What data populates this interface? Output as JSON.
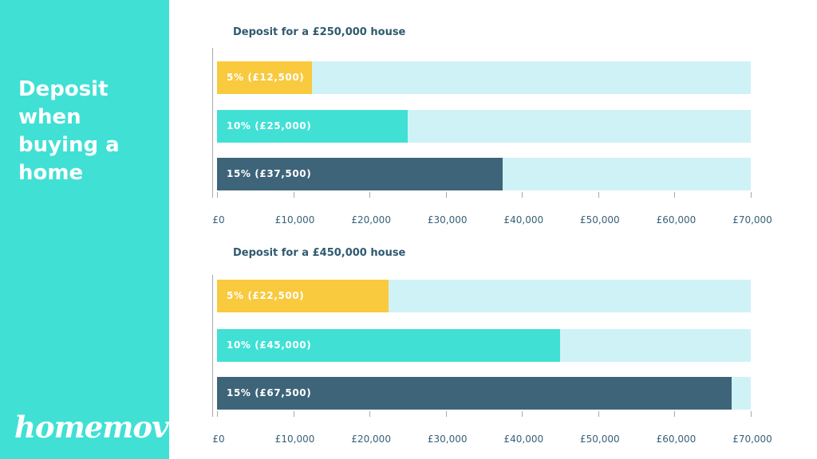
{
  "sidebar": {
    "title_lines": [
      "Deposit",
      "when",
      "buying a",
      "home"
    ],
    "logo": "homemove",
    "background_color": "#40e0d5"
  },
  "chart_data": [
    {
      "type": "bar",
      "orientation": "horizontal",
      "stacked_background": true,
      "title": "Deposit for a £250,000 house",
      "categories": [
        "5% (£12,500)",
        "10% (£25,000)",
        "15% (£37,500)"
      ],
      "values": [
        12500,
        25000,
        37500
      ],
      "colors": [
        "#f9c93e",
        "#40e0d5",
        "#3e6479"
      ],
      "xlim": [
        0,
        70000
      ],
      "ticks": [
        0,
        10000,
        20000,
        30000,
        40000,
        50000,
        60000,
        70000
      ],
      "tick_labels": [
        "£0",
        "£10,000",
        "£20,000",
        "£30,000",
        "£40,000",
        "£50,000",
        "£60,000",
        "£70,000"
      ],
      "track_color": "#cff2f7"
    },
    {
      "type": "bar",
      "orientation": "horizontal",
      "stacked_background": true,
      "title": "Deposit for a £450,000 house",
      "categories": [
        "5% (£22,500)",
        "10% (£45,000)",
        "15% (£67,500)"
      ],
      "values": [
        22500,
        45000,
        67500
      ],
      "colors": [
        "#f9c93e",
        "#40e0d5",
        "#3e6479"
      ],
      "xlim": [
        0,
        70000
      ],
      "ticks": [
        0,
        10000,
        20000,
        30000,
        40000,
        50000,
        60000,
        70000
      ],
      "tick_labels": [
        "£0",
        "£10,000",
        "£20,000",
        "£30,000",
        "£40,000",
        "£50,000",
        "£60,000",
        "£70,000"
      ],
      "track_color": "#cff2f7"
    }
  ]
}
